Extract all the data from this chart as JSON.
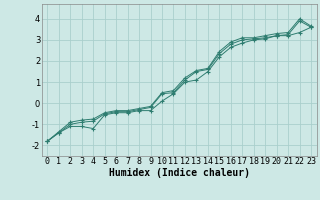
{
  "xlabel": "Humidex (Indice chaleur)",
  "ylabel": "",
  "xlim": [
    -0.5,
    23.5
  ],
  "ylim": [
    -2.5,
    4.7
  ],
  "yticks": [
    -2,
    -1,
    0,
    1,
    2,
    3,
    4
  ],
  "xticks": [
    0,
    1,
    2,
    3,
    4,
    5,
    6,
    7,
    8,
    9,
    10,
    11,
    12,
    13,
    14,
    15,
    16,
    17,
    18,
    19,
    20,
    21,
    22,
    23
  ],
  "background_color": "#cde8e5",
  "grid_color": "#aacfcc",
  "line_color": "#2e7d70",
  "line1_y": [
    -1.8,
    -1.4,
    -1.1,
    -1.1,
    -1.2,
    -0.55,
    -0.45,
    -0.45,
    -0.35,
    -0.35,
    0.1,
    0.45,
    1.0,
    1.1,
    1.5,
    2.2,
    2.65,
    2.85,
    3.0,
    3.05,
    3.2,
    3.2,
    3.35,
    3.6
  ],
  "line2_y": [
    -1.8,
    -1.4,
    -1.0,
    -0.9,
    -0.85,
    -0.5,
    -0.4,
    -0.4,
    -0.3,
    -0.2,
    0.45,
    0.5,
    1.1,
    1.5,
    1.6,
    2.35,
    2.8,
    3.0,
    3.05,
    3.1,
    3.2,
    3.25,
    3.9,
    3.6
  ],
  "line3_y": [
    -1.8,
    -1.35,
    -0.9,
    -0.8,
    -0.75,
    -0.45,
    -0.35,
    -0.35,
    -0.25,
    -0.15,
    0.5,
    0.6,
    1.2,
    1.55,
    1.65,
    2.45,
    2.9,
    3.1,
    3.1,
    3.2,
    3.3,
    3.35,
    4.0,
    3.65
  ],
  "tick_fontsize": 6.0,
  "xlabel_fontsize": 7.0,
  "linewidth": 0.7,
  "markersize": 3.0
}
